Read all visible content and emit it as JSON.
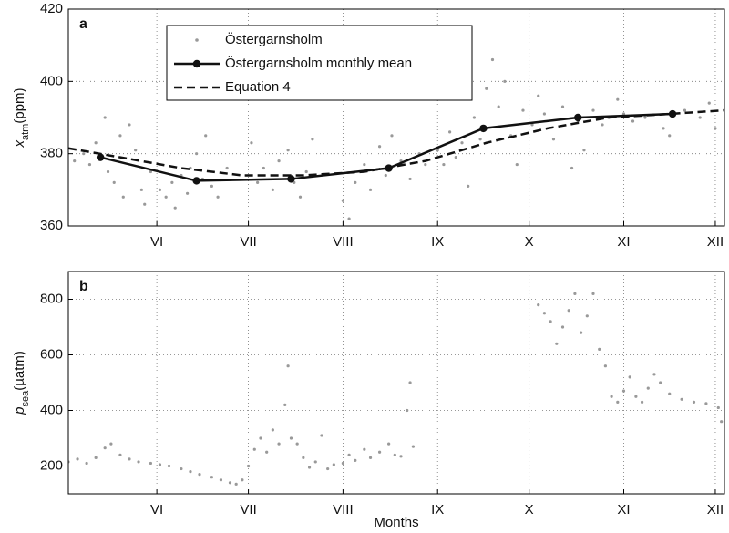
{
  "chart_data": [
    {
      "type": "scatter",
      "label": "a",
      "ylabel": {
        "symbol": "x",
        "subscript": "atm",
        "unit": "(ppm)"
      },
      "xlim": [
        123,
        338
      ],
      "ylim": [
        360,
        420
      ],
      "yticks": [
        360,
        380,
        400,
        420
      ],
      "grid": true,
      "legend": "upper-left",
      "xticks": [
        {
          "value": 152,
          "label": "VI"
        },
        {
          "value": 182,
          "label": "VII"
        },
        {
          "value": 213,
          "label": "VIII"
        },
        {
          "value": 244,
          "label": "IX"
        },
        {
          "value": 274,
          "label": "X"
        },
        {
          "value": 305,
          "label": "XI"
        },
        {
          "value": 335,
          "label": "XII"
        }
      ],
      "series": [
        {
          "name": "Östergarnsholm",
          "style": "dots",
          "color": "#999999",
          "x": [
            125,
            128,
            130,
            132,
            135,
            136,
            138,
            140,
            141,
            143,
            145,
            147,
            148,
            150,
            153,
            155,
            157,
            158,
            160,
            162,
            163,
            165,
            167,
            168,
            170,
            172,
            175,
            183,
            185,
            187,
            190,
            192,
            195,
            197,
            199,
            201,
            203,
            213,
            215,
            217,
            220,
            222,
            225,
            227,
            229,
            232,
            235,
            238,
            240,
            244,
            246,
            248,
            250,
            252,
            254,
            256,
            258,
            260,
            262,
            264,
            266,
            268,
            270,
            272,
            275,
            277,
            279,
            282,
            285,
            288,
            290,
            292,
            295,
            298,
            300,
            303,
            305,
            308,
            312,
            318,
            320,
            325,
            330,
            333,
            335
          ],
          "values": [
            378,
            380,
            377,
            383,
            390,
            375,
            372,
            385,
            368,
            388,
            381,
            370,
            366,
            375,
            370,
            368,
            372,
            365,
            374,
            369,
            376,
            380,
            373,
            385,
            371,
            368,
            376,
            383,
            372,
            376,
            370,
            378,
            381,
            372,
            368,
            375,
            384,
            367,
            362,
            372,
            377,
            370,
            382,
            374,
            385,
            378,
            373,
            380,
            377,
            381,
            377,
            386,
            379,
            383,
            371,
            390,
            384,
            398,
            406,
            393,
            400,
            385,
            377,
            392,
            388,
            396,
            391,
            384,
            393,
            376,
            389,
            381,
            392,
            388,
            390,
            395,
            391,
            389,
            390,
            387,
            385,
            392,
            390,
            394,
            387
          ]
        },
        {
          "name": "Östergarnsholm monthly mean",
          "style": "line-marker",
          "color": "#111111",
          "x": [
            133.5,
            165,
            196,
            228,
            259,
            290,
            321
          ],
          "values": [
            379,
            372.5,
            373,
            376,
            387,
            390,
            391
          ]
        },
        {
          "name": "Equation 4",
          "style": "dash",
          "color": "#111111",
          "x": [
            123,
            140,
            160,
            180,
            200,
            220,
            240,
            260,
            280,
            300,
            320,
            338
          ],
          "values": [
            381.5,
            379,
            376,
            374,
            374,
            375,
            378,
            383,
            387,
            390,
            391,
            392
          ]
        }
      ]
    },
    {
      "type": "scatter",
      "label": "b",
      "ylabel": {
        "symbol": "p",
        "subscript": "sea",
        "unit": "(µatm)"
      },
      "xlabel": "Months",
      "xlim": [
        123,
        338
      ],
      "ylim": [
        100,
        900
      ],
      "yticks": [
        200,
        400,
        600,
        800
      ],
      "grid": true,
      "xticks": [
        {
          "value": 152,
          "label": "VI"
        },
        {
          "value": 182,
          "label": "VII"
        },
        {
          "value": 213,
          "label": "VIII"
        },
        {
          "value": 244,
          "label": "IX"
        },
        {
          "value": 274,
          "label": "X"
        },
        {
          "value": 305,
          "label": "XI"
        },
        {
          "value": 335,
          "label": "XII"
        }
      ],
      "series": [
        {
          "style": "dots",
          "color": "#999999",
          "x": [
            123,
            126,
            129,
            132,
            135,
            137,
            140,
            143,
            146,
            150,
            153,
            156,
            160,
            163,
            166,
            170,
            173,
            176,
            178,
            180,
            182,
            184,
            186,
            188,
            190,
            192,
            194,
            195,
            196,
            198,
            200,
            202,
            204,
            206,
            208,
            210,
            213,
            215,
            217,
            220,
            222,
            225,
            228,
            230,
            232,
            234,
            235,
            236,
            277,
            279,
            281,
            283,
            285,
            287,
            289,
            291,
            293,
            295,
            297,
            299,
            301,
            303,
            305,
            307,
            309,
            311,
            313,
            315,
            317,
            320,
            324,
            328,
            332,
            336,
            337
          ],
          "values": [
            215,
            225,
            210,
            230,
            265,
            280,
            240,
            225,
            215,
            210,
            205,
            200,
            190,
            180,
            170,
            160,
            150,
            140,
            135,
            150,
            200,
            260,
            300,
            250,
            330,
            280,
            420,
            560,
            300,
            280,
            230,
            195,
            215,
            310,
            190,
            205,
            210,
            240,
            220,
            260,
            230,
            250,
            280,
            240,
            235,
            400,
            500,
            270,
            780,
            750,
            720,
            640,
            700,
            760,
            820,
            680,
            740,
            820,
            620,
            560,
            450,
            430,
            470,
            520,
            450,
            430,
            480,
            530,
            500,
            460,
            440,
            430,
            425,
            410,
            360
          ]
        }
      ]
    }
  ]
}
